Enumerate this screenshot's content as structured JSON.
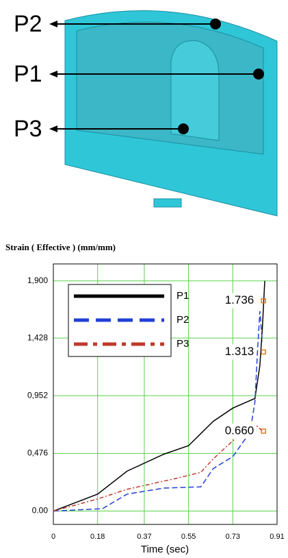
{
  "figure": {
    "labels": [
      "P2",
      "P1",
      "P3"
    ]
  },
  "chart_data": {
    "type": "line",
    "title": "Strain ( Effective )  (mm/mm)",
    "xlabel": "Time (sec)",
    "xlim": [
      0,
      0.91
    ],
    "xticks": [
      0,
      0.18,
      0.37,
      0.55,
      0.73,
      0.91
    ],
    "ylim": [
      -0.11,
      2.04
    ],
    "yticks": [
      {
        "value": 0,
        "label": "0.00"
      },
      {
        "value": 0.476,
        "label": "0,476"
      },
      {
        "value": 0.952,
        "label": "0,952"
      },
      {
        "value": 1.428,
        "label": "1,428"
      },
      {
        "value": 1.9,
        "label": "1,900"
      }
    ],
    "grid": true,
    "grid_color": "#5ad04a",
    "legend": "upper left",
    "series": [
      {
        "name": "P1",
        "color": "#000000",
        "style": "solid",
        "x": [
          0,
          0.18,
          0.3,
          0.45,
          0.55,
          0.65,
          0.73,
          0.82,
          0.84,
          0.85,
          0.86
        ],
        "values": [
          0,
          0.14,
          0.33,
          0.47,
          0.54,
          0.74,
          0.85,
          0.93,
          1.2,
          1.5,
          1.9
        ]
      },
      {
        "name": "P2",
        "color": "#1f3fd6",
        "style": "dashed",
        "x": [
          0,
          0.2,
          0.3,
          0.45,
          0.6,
          0.65,
          0.73,
          0.8,
          0.82,
          0.83,
          0.84,
          0.85
        ],
        "values": [
          0,
          0.02,
          0.14,
          0.19,
          0.2,
          0.35,
          0.45,
          0.65,
          0.9,
          1.3,
          1.65,
          1.4
        ]
      },
      {
        "name": "P3",
        "color": "#c0392b",
        "style": "dashdot",
        "x": [
          0,
          0.18,
          0.3,
          0.5,
          0.6,
          0.65,
          0.73,
          0.8,
          0.83,
          0.85
        ],
        "values": [
          0,
          0.1,
          0.18,
          0.27,
          0.32,
          0.43,
          0.58,
          0.7,
          0.7,
          0.66
        ]
      }
    ],
    "annotations": [
      {
        "label": "1.736",
        "value": 1.736,
        "x": 0.855
      },
      {
        "label": "1.313",
        "value": 1.313,
        "x": 0.855
      },
      {
        "label": "0.660",
        "value": 0.66,
        "x": 0.855
      }
    ],
    "annotation_color": "#e07b1a"
  }
}
